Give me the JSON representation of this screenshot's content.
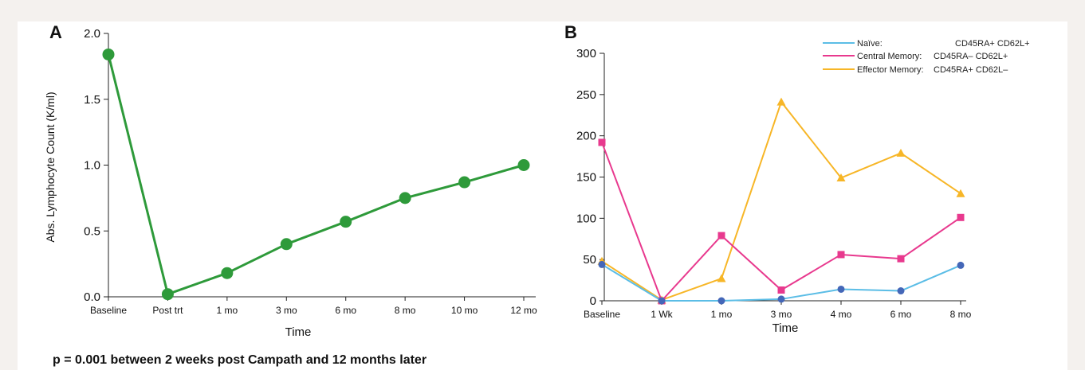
{
  "footnote": "p = 0.001 between 2 weeks post Campath and 12 months later",
  "chart_data": [
    {
      "panel_label": "A",
      "type": "line",
      "xlabel": "Time",
      "ylabel": "Abs. Lymphocyte Count (K/ml)",
      "ylim": [
        0,
        2.0
      ],
      "yticks": [
        "0.0",
        "0.5",
        "1.0",
        "1.5",
        "2.0"
      ],
      "categories": [
        "Baseline",
        "Post trt",
        "1 mo",
        "3 mo",
        "6 mo",
        "8 mo",
        "10 mo",
        "12 mo"
      ],
      "grid": false,
      "series": [
        {
          "color": "#2e9a3a",
          "values": [
            1.84,
            0.02,
            0.18,
            0.4,
            0.57,
            0.75,
            0.87,
            1.0
          ]
        }
      ]
    },
    {
      "panel_label": "B",
      "type": "line",
      "xlabel": "Time",
      "ylabel": "",
      "ylim": [
        0,
        300
      ],
      "yticks": [
        "0",
        "50",
        "100",
        "150",
        "200",
        "250",
        "300"
      ],
      "categories": [
        "Baseline",
        "1 Wk",
        "1 mo",
        "3 mo",
        "4 mo",
        "6 mo",
        "8 mo"
      ],
      "grid": false,
      "legend_position": "top-right",
      "series": [
        {
          "name": "Naïve:",
          "markers": "CD45RA+ CD62L+",
          "color": "#5bbde6",
          "marker_color": "#4467b8",
          "marker": "circle",
          "values": [
            44,
            0,
            0,
            2,
            14,
            12,
            43
          ]
        },
        {
          "name": "Central Memory:",
          "markers": "CD45RA– CD62L+",
          "color": "#e8398e",
          "marker_color": "#e8398e",
          "marker": "square",
          "values": [
            192,
            0,
            79,
            13,
            56,
            51,
            101
          ]
        },
        {
          "name": "Effector Memory:",
          "markers": "CD45RA+ CD62L–",
          "color": "#f7b627",
          "marker_color": "#f7b627",
          "marker": "triangle",
          "values": [
            48,
            1,
            27,
            241,
            149,
            179,
            130
          ]
        }
      ]
    }
  ]
}
